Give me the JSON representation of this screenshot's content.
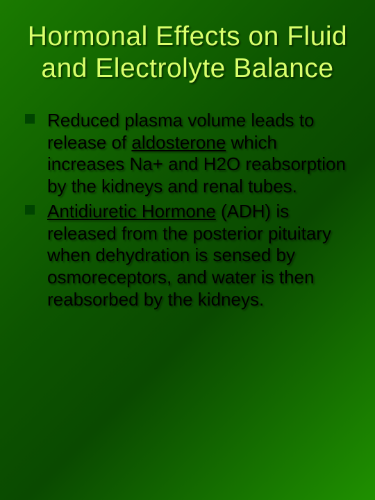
{
  "slide": {
    "background_gradient": [
      "#1a7a00",
      "#0d5500",
      "#0a4a00",
      "#1f9000"
    ],
    "title": {
      "text": "Hormonal Effects on Fluid and Electrolyte Balance",
      "color": "#d9ff6b",
      "fontsize": 39,
      "font_family": "Impact",
      "shadow_color": "#000000"
    },
    "bullets": {
      "marker_shape": "square",
      "marker_color": "#004400",
      "marker_size": 14,
      "text_color": "#000000",
      "text_fontsize": 26,
      "text_shadow": "2px 2px 2px rgba(0,0,0,0.35)",
      "items": [
        {
          "before": "Reduced plasma volume leads to release of ",
          "underlined": "aldosterone",
          "after": " which increases Na+ and H2O reabsorption by the kidneys and renal tubes."
        },
        {
          "before": "",
          "underlined": "Antidiuretic Hormone",
          "after": " (ADH) is released from the posterior pituitary when dehydration is sensed by osmoreceptors, and water is then reabsorbed by the kidneys."
        }
      ]
    }
  }
}
